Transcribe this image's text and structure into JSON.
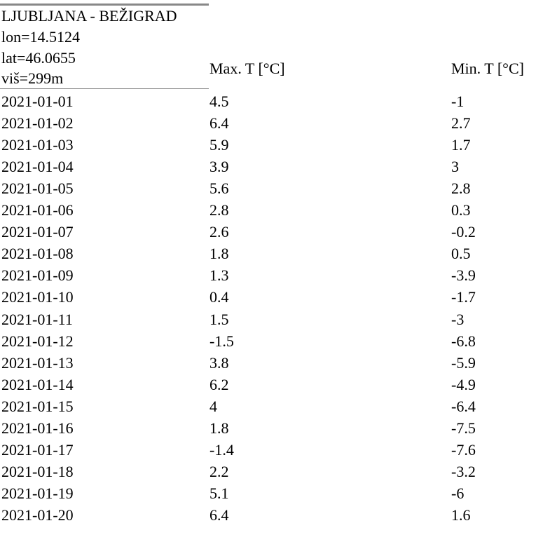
{
  "header": {
    "station": "LJUBLJANA - BEŽIGRAD",
    "lon": "lon=14.5124",
    "lat": "lat=46.0655",
    "alt": "viš=299m"
  },
  "table": {
    "columns": [
      "Max. T [°C]",
      "Min. T [°C]"
    ],
    "rows": [
      [
        "2021-01-01",
        4.5,
        -1
      ],
      [
        "2021-01-02",
        6.4,
        2.7
      ],
      [
        "2021-01-03",
        5.9,
        1.7
      ],
      [
        "2021-01-04",
        3.9,
        3
      ],
      [
        "2021-01-05",
        5.6,
        2.8
      ],
      [
        "2021-01-06",
        2.8,
        0.3
      ],
      [
        "2021-01-07",
        2.6,
        -0.2
      ],
      [
        "2021-01-08",
        1.8,
        0.5
      ],
      [
        "2021-01-09",
        1.3,
        -3.9
      ],
      [
        "2021-01-10",
        0.4,
        -1.7
      ],
      [
        "2021-01-11",
        1.5,
        -3
      ],
      [
        "2021-01-12",
        -1.5,
        -6.8
      ],
      [
        "2021-01-13",
        3.8,
        -5.9
      ],
      [
        "2021-01-14",
        6.2,
        -4.9
      ],
      [
        "2021-01-15",
        4,
        -6.4
      ],
      [
        "2021-01-16",
        1.8,
        -7.5
      ],
      [
        "2021-01-17",
        -1.4,
        -7.6
      ],
      [
        "2021-01-18",
        2.2,
        -3.2
      ],
      [
        "2021-01-19",
        5.1,
        -6
      ],
      [
        "2021-01-20",
        6.4,
        1.6
      ]
    ]
  }
}
